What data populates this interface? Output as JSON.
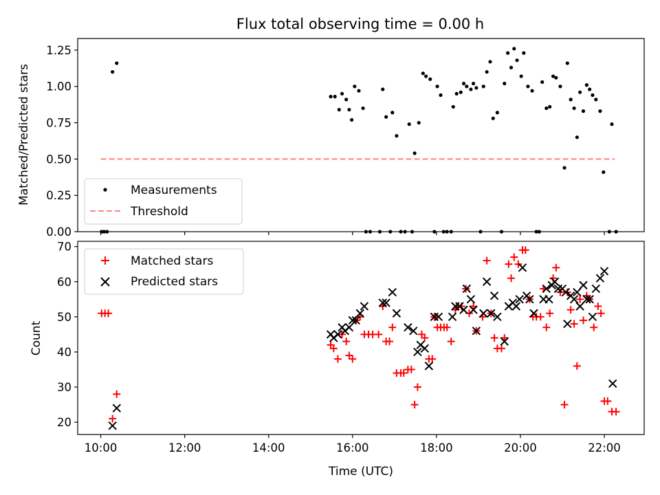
{
  "chart_data": [
    {
      "type": "scatter",
      "title": "Flux total observing time = 0.00 h",
      "xlabel": "",
      "ylabel": "Matched/Predicted stars",
      "xlim": [
        9.45,
        22.95
      ],
      "ylim": [
        0,
        1.33
      ],
      "x_unit": "hours UTC",
      "x_ticks": [
        10,
        12,
        14,
        16,
        18,
        20,
        22
      ],
      "y_ticks": [
        0.0,
        0.25,
        0.5,
        0.75,
        1.0,
        1.25
      ],
      "y_tick_labels": [
        "0.00",
        "0.25",
        "0.50",
        "0.75",
        "1.00",
        "1.25"
      ],
      "legend_position": "lower-left",
      "threshold": {
        "name": "Threshold",
        "value": 0.5,
        "x_range": [
          10.0,
          22.25
        ],
        "color": "#ff8080",
        "style": "dashed"
      },
      "series": [
        {
          "name": "Measurements",
          "marker": "dot",
          "color": "#000000",
          "points": [
            [
              10.02,
              0.0
            ],
            [
              10.08,
              0.0
            ],
            [
              10.15,
              0.0
            ],
            [
              10.28,
              1.1
            ],
            [
              10.38,
              1.16
            ],
            [
              15.48,
              0.93
            ],
            [
              15.58,
              0.93
            ],
            [
              15.68,
              0.84
            ],
            [
              15.75,
              0.95
            ],
            [
              15.85,
              0.91
            ],
            [
              15.92,
              0.84
            ],
            [
              15.98,
              0.77
            ],
            [
              16.05,
              1.0
            ],
            [
              16.15,
              0.97
            ],
            [
              16.25,
              0.85
            ],
            [
              16.32,
              0.0
            ],
            [
              16.42,
              0.0
            ],
            [
              16.65,
              0.0
            ],
            [
              16.72,
              0.98
            ],
            [
              16.8,
              0.79
            ],
            [
              16.9,
              0.0
            ],
            [
              16.95,
              0.82
            ],
            [
              17.05,
              0.66
            ],
            [
              17.15,
              0.0
            ],
            [
              17.25,
              0.0
            ],
            [
              17.35,
              0.74
            ],
            [
              17.42,
              0.0
            ],
            [
              17.48,
              0.54
            ],
            [
              17.58,
              0.75
            ],
            [
              17.68,
              1.09
            ],
            [
              17.75,
              1.07
            ],
            [
              17.85,
              1.05
            ],
            [
              17.95,
              0.0
            ],
            [
              18.02,
              1.0
            ],
            [
              18.1,
              0.94
            ],
            [
              18.17,
              0.0
            ],
            [
              18.25,
              0.0
            ],
            [
              18.35,
              0.0
            ],
            [
              18.4,
              0.86
            ],
            [
              18.48,
              0.95
            ],
            [
              18.58,
              0.96
            ],
            [
              18.65,
              1.02
            ],
            [
              18.72,
              1.0
            ],
            [
              18.82,
              0.98
            ],
            [
              18.88,
              1.02
            ],
            [
              18.95,
              0.99
            ],
            [
              19.05,
              0.0
            ],
            [
              19.12,
              1.0
            ],
            [
              19.2,
              1.1
            ],
            [
              19.28,
              1.17
            ],
            [
              19.35,
              0.78
            ],
            [
              19.45,
              0.82
            ],
            [
              19.55,
              0.0
            ],
            [
              19.62,
              1.02
            ],
            [
              19.7,
              1.23
            ],
            [
              19.78,
              1.13
            ],
            [
              19.85,
              1.26
            ],
            [
              19.92,
              1.18
            ],
            [
              20.02,
              1.07
            ],
            [
              20.08,
              1.23
            ],
            [
              20.18,
              1.0
            ],
            [
              20.28,
              0.97
            ],
            [
              20.38,
              0.0
            ],
            [
              20.45,
              0.0
            ],
            [
              20.52,
              1.03
            ],
            [
              20.62,
              0.85
            ],
            [
              20.7,
              0.86
            ],
            [
              20.78,
              1.07
            ],
            [
              20.85,
              1.06
            ],
            [
              20.95,
              1.0
            ],
            [
              21.05,
              0.44
            ],
            [
              21.12,
              1.16
            ],
            [
              21.2,
              0.91
            ],
            [
              21.28,
              0.85
            ],
            [
              21.35,
              0.65
            ],
            [
              21.42,
              0.96
            ],
            [
              21.5,
              0.83
            ],
            [
              21.58,
              1.01
            ],
            [
              21.65,
              0.98
            ],
            [
              21.72,
              0.94
            ],
            [
              21.8,
              0.91
            ],
            [
              21.9,
              0.83
            ],
            [
              21.98,
              0.41
            ],
            [
              22.12,
              0.0
            ],
            [
              22.18,
              0.74
            ],
            [
              22.28,
              0.0
            ]
          ]
        }
      ]
    },
    {
      "type": "scatter",
      "title": "",
      "xlabel": "Time (UTC)",
      "ylabel": "Count",
      "xlim": [
        9.45,
        22.95
      ],
      "ylim": [
        16.5,
        71.5
      ],
      "x_unit": "hours UTC",
      "x_ticks": [
        10,
        12,
        14,
        16,
        18,
        20,
        22
      ],
      "x_tick_labels": [
        "10:00",
        "12:00",
        "14:00",
        "16:00",
        "18:00",
        "20:00",
        "22:00"
      ],
      "y_ticks": [
        20,
        30,
        40,
        50,
        60,
        70
      ],
      "legend_position": "top-left",
      "series": [
        {
          "name": "Matched stars",
          "marker": "plus",
          "color": "#ff0000",
          "points": [
            [
              10.02,
              51
            ],
            [
              10.1,
              51
            ],
            [
              10.18,
              51
            ],
            [
              10.28,
              21
            ],
            [
              10.38,
              28
            ],
            [
              15.48,
              42
            ],
            [
              15.55,
              41
            ],
            [
              15.65,
              38
            ],
            [
              15.75,
              45
            ],
            [
              15.85,
              43
            ],
            [
              15.92,
              39
            ],
            [
              16.0,
              38
            ],
            [
              16.08,
              49
            ],
            [
              16.18,
              50
            ],
            [
              16.28,
              45
            ],
            [
              16.38,
              45
            ],
            [
              16.48,
              45
            ],
            [
              16.62,
              45
            ],
            [
              16.72,
              53
            ],
            [
              16.8,
              43
            ],
            [
              16.88,
              43
            ],
            [
              16.95,
              47
            ],
            [
              17.05,
              34
            ],
            [
              17.15,
              34
            ],
            [
              17.22,
              34
            ],
            [
              17.32,
              35
            ],
            [
              17.4,
              35
            ],
            [
              17.48,
              25
            ],
            [
              17.55,
              30
            ],
            [
              17.65,
              45
            ],
            [
              17.72,
              44
            ],
            [
              17.82,
              38
            ],
            [
              17.9,
              38
            ],
            [
              17.95,
              50
            ],
            [
              18.02,
              47
            ],
            [
              18.1,
              47
            ],
            [
              18.18,
              47
            ],
            [
              18.25,
              47
            ],
            [
              18.35,
              43
            ],
            [
              18.45,
              52
            ],
            [
              18.52,
              53
            ],
            [
              18.6,
              53
            ],
            [
              18.7,
              58
            ],
            [
              18.78,
              51
            ],
            [
              18.88,
              53
            ],
            [
              18.95,
              46
            ],
            [
              19.1,
              50
            ],
            [
              19.2,
              66
            ],
            [
              19.3,
              51
            ],
            [
              19.38,
              44
            ],
            [
              19.45,
              41
            ],
            [
              19.55,
              41
            ],
            [
              19.62,
              44
            ],
            [
              19.72,
              65
            ],
            [
              19.78,
              61
            ],
            [
              19.85,
              67
            ],
            [
              19.95,
              65
            ],
            [
              20.05,
              69
            ],
            [
              20.12,
              69
            ],
            [
              20.22,
              55
            ],
            [
              20.3,
              50
            ],
            [
              20.38,
              50
            ],
            [
              20.48,
              50
            ],
            [
              20.55,
              58
            ],
            [
              20.62,
              47
            ],
            [
              20.7,
              51
            ],
            [
              20.78,
              61
            ],
            [
              20.85,
              64
            ],
            [
              20.95,
              57
            ],
            [
              21.05,
              25
            ],
            [
              21.12,
              57
            ],
            [
              21.2,
              52
            ],
            [
              21.28,
              48
            ],
            [
              21.35,
              36
            ],
            [
              21.42,
              55
            ],
            [
              21.5,
              49
            ],
            [
              21.58,
              56
            ],
            [
              21.65,
              55
            ],
            [
              21.75,
              47
            ],
            [
              21.85,
              53
            ],
            [
              21.92,
              51
            ],
            [
              22.0,
              26
            ],
            [
              22.08,
              26
            ],
            [
              22.18,
              23
            ],
            [
              22.28,
              23
            ]
          ]
        },
        {
          "name": "Predicted stars",
          "marker": "x",
          "color": "#000000",
          "points": [
            [
              10.28,
              19
            ],
            [
              10.38,
              24
            ],
            [
              15.48,
              45
            ],
            [
              15.55,
              44
            ],
            [
              15.65,
              45
            ],
            [
              15.75,
              47
            ],
            [
              15.82,
              46
            ],
            [
              15.92,
              47
            ],
            [
              16.0,
              49
            ],
            [
              16.08,
              49
            ],
            [
              16.18,
              51
            ],
            [
              16.28,
              53
            ],
            [
              16.72,
              54
            ],
            [
              16.8,
              54
            ],
            [
              16.95,
              57
            ],
            [
              17.05,
              51
            ],
            [
              17.32,
              47
            ],
            [
              17.45,
              46
            ],
            [
              17.55,
              40
            ],
            [
              17.62,
              42
            ],
            [
              17.72,
              41
            ],
            [
              17.82,
              36
            ],
            [
              17.95,
              50
            ],
            [
              18.05,
              50
            ],
            [
              18.38,
              50
            ],
            [
              18.45,
              53
            ],
            [
              18.55,
              53
            ],
            [
              18.65,
              52
            ],
            [
              18.72,
              58
            ],
            [
              18.82,
              55
            ],
            [
              18.88,
              52
            ],
            [
              18.95,
              46
            ],
            [
              19.12,
              51
            ],
            [
              19.2,
              60
            ],
            [
              19.3,
              51
            ],
            [
              19.38,
              56
            ],
            [
              19.45,
              50
            ],
            [
              19.62,
              43
            ],
            [
              19.72,
              53
            ],
            [
              19.82,
              54
            ],
            [
              19.9,
              53
            ],
            [
              19.98,
              55
            ],
            [
              20.05,
              64
            ],
            [
              20.15,
              56
            ],
            [
              20.22,
              55
            ],
            [
              20.32,
              51
            ],
            [
              20.55,
              55
            ],
            [
              20.62,
              58
            ],
            [
              20.68,
              55
            ],
            [
              20.75,
              59
            ],
            [
              20.82,
              60
            ],
            [
              20.9,
              58
            ],
            [
              21.0,
              58
            ],
            [
              21.08,
              57
            ],
            [
              21.12,
              48
            ],
            [
              21.2,
              56
            ],
            [
              21.28,
              55
            ],
            [
              21.35,
              57
            ],
            [
              21.42,
              53
            ],
            [
              21.5,
              59
            ],
            [
              21.58,
              55
            ],
            [
              21.65,
              55
            ],
            [
              21.72,
              50
            ],
            [
              21.8,
              58
            ],
            [
              21.9,
              61
            ],
            [
              22.0,
              63
            ],
            [
              22.2,
              31
            ]
          ]
        }
      ]
    }
  ]
}
